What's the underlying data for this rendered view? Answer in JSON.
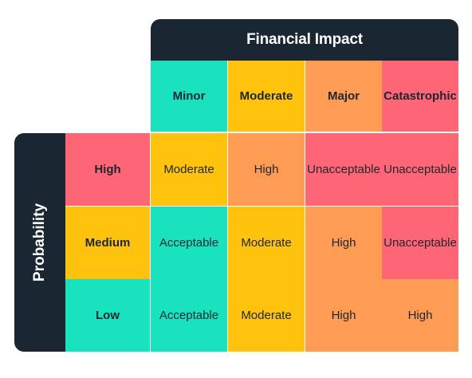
{
  "header": {
    "title": "Financial Impact"
  },
  "side": {
    "title": "Probability"
  },
  "columns": [
    "Minor",
    "Moderate",
    "Major",
    "Catastrophic"
  ],
  "rows": [
    {
      "label": "High",
      "cells": [
        "Moderate",
        "High",
        "Unacceptable",
        "Unacceptable"
      ]
    },
    {
      "label": "Medium",
      "cells": [
        "Acceptable",
        "Moderate",
        "High",
        "Unacceptable"
      ]
    },
    {
      "label": "Low",
      "cells": [
        "Acceptable",
        "Moderate",
        "High",
        "High"
      ]
    }
  ],
  "colors": {
    "dark": "#1b2633",
    "teal": "#19e2bf",
    "yellow": "#ffc20d",
    "orange": "#ff9c53",
    "red": "#ff6675"
  },
  "level_colors": {
    "Acceptable": "#19e2bf",
    "Moderate": "#ffc20d",
    "High": "#ff9c53",
    "Unacceptable": "#ff6675"
  },
  "column_colors": [
    "#19e2bf",
    "#ffc20d",
    "#ff9c53",
    "#ff6675"
  ],
  "row_colors": [
    "#ff6675",
    "#ffc20d",
    "#19e2bf"
  ]
}
